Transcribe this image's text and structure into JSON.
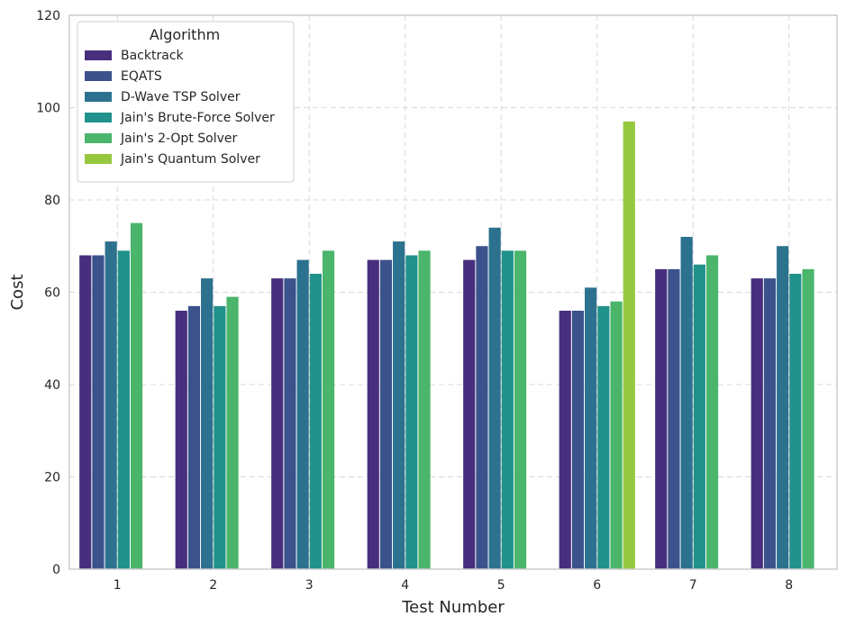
{
  "chart_data": {
    "type": "bar",
    "xlabel": "Test Number",
    "ylabel": "Cost",
    "ylim": [
      0,
      120
    ],
    "yticks": [
      0,
      20,
      40,
      60,
      80,
      100,
      120
    ],
    "categories": [
      "1",
      "2",
      "3",
      "4",
      "5",
      "6",
      "7",
      "8"
    ],
    "grid": true,
    "legend": {
      "title": "Algorithm",
      "placement": "top-left"
    },
    "series": [
      {
        "name": "Backtrack",
        "color": "#472f7d",
        "values": [
          68,
          56,
          63,
          67,
          67,
          56,
          65,
          63
        ]
      },
      {
        "name": "EQATS",
        "color": "#3b528b",
        "values": [
          68,
          57,
          63,
          67,
          70,
          56,
          65,
          63
        ]
      },
      {
        "name": "D-Wave TSP Solver",
        "color": "#2c728e",
        "values": [
          71,
          63,
          67,
          71,
          74,
          61,
          72,
          70
        ]
      },
      {
        "name": "Jain's Brute-Force Solver",
        "color": "#21918c",
        "values": [
          69,
          57,
          64,
          68,
          69,
          57,
          66,
          64
        ]
      },
      {
        "name": "Jain's 2-Opt Solver",
        "color": "#4ab56b",
        "values": [
          75,
          59,
          69,
          69,
          69,
          58,
          68,
          65
        ]
      },
      {
        "name": "Jain's Quantum Solver",
        "color": "#95c83f",
        "values": [
          null,
          null,
          null,
          null,
          null,
          97,
          null,
          null
        ]
      }
    ]
  }
}
